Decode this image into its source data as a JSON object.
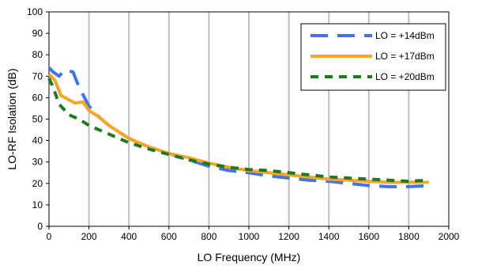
{
  "chart_data": {
    "type": "line",
    "title": "",
    "xlabel": "LO Frequency (MHz)",
    "ylabel": "LO-RF Isolation (dB)",
    "xlim": [
      0,
      2000
    ],
    "ylim": [
      0,
      100
    ],
    "xticks": [
      0,
      200,
      400,
      600,
      800,
      1000,
      1200,
      1400,
      1600,
      1800,
      2000
    ],
    "yticks": [
      0,
      10,
      20,
      30,
      40,
      50,
      60,
      70,
      80,
      90,
      100
    ],
    "grid": "vertical",
    "legend_position": "top-right",
    "series": [
      {
        "name": "LO = +14dBm",
        "color": "#4472e8",
        "dash": "long-dash",
        "x": [
          0,
          20,
          50,
          80,
          120,
          150,
          200,
          250,
          300,
          400,
          500,
          600,
          700,
          800,
          900,
          1000,
          1100,
          1200,
          1300,
          1400,
          1500,
          1600,
          1700,
          1800,
          1900
        ],
        "y": [
          74,
          72,
          70,
          73,
          72,
          65,
          56,
          51,
          47,
          41,
          37,
          34,
          31,
          28,
          26,
          25,
          23.5,
          22.5,
          21.5,
          21,
          20,
          19,
          18.5,
          18.5,
          19
        ]
      },
      {
        "name": "LO = +17dBm",
        "color": "#f5a623",
        "dash": "solid",
        "x": [
          0,
          30,
          60,
          100,
          130,
          170,
          200,
          250,
          300,
          400,
          500,
          600,
          700,
          800,
          900,
          1000,
          1100,
          1200,
          1300,
          1400,
          1500,
          1600,
          1700,
          1800,
          1900
        ],
        "y": [
          71,
          68,
          61,
          59,
          57.5,
          58,
          54,
          51,
          47,
          41,
          37,
          34,
          32,
          29.5,
          27.5,
          26,
          25,
          24,
          23,
          22,
          21.5,
          21,
          20.5,
          20.5,
          20.5
        ]
      },
      {
        "name": "LO = +20dBm",
        "color": "#1f7a1f",
        "dash": "dash",
        "x": [
          0,
          20,
          50,
          100,
          150,
          200,
          250,
          300,
          400,
          500,
          600,
          700,
          800,
          900,
          1000,
          1100,
          1200,
          1300,
          1400,
          1500,
          1600,
          1700,
          1800,
          1900
        ],
        "y": [
          69,
          65,
          57,
          52,
          50,
          47,
          45,
          43,
          39,
          36,
          33.5,
          31,
          29,
          27.5,
          26.5,
          26,
          25,
          24,
          23,
          22.5,
          22,
          21.5,
          21,
          21.5
        ]
      }
    ]
  }
}
